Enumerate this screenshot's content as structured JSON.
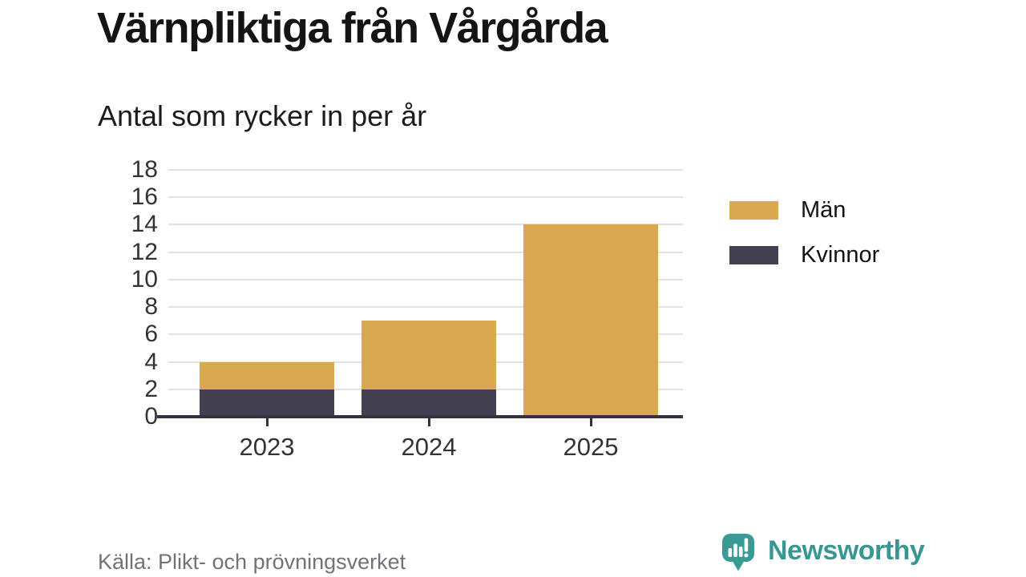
{
  "header": {
    "title": "Värnpliktiga från Vårgårda",
    "subtitle": "Antal som rycker in per år"
  },
  "chart_data": {
    "type": "bar",
    "stacked": true,
    "title": "Värnpliktiga från Vårgårda",
    "subtitle": "Antal som rycker in per år",
    "categories": [
      "2023",
      "2024",
      "2025"
    ],
    "series": [
      {
        "name": "Män",
        "color": "#d9a850",
        "values": [
          2,
          5,
          14
        ]
      },
      {
        "name": "Kvinnor",
        "color": "#434051",
        "values": [
          2,
          2,
          0
        ]
      }
    ],
    "stack_order_bottom_to_top": [
      "Kvinnor",
      "Män"
    ],
    "totals": [
      4,
      7,
      14
    ],
    "xlabel": "",
    "ylabel": "",
    "ylim": [
      0,
      18
    ],
    "yticks": [
      0,
      2,
      4,
      6,
      8,
      10,
      12,
      14,
      16,
      18
    ],
    "grid": true,
    "legend_position": "right",
    "legend": [
      "Män",
      "Kvinnor"
    ]
  },
  "colors": {
    "man_gold": "#d9a850",
    "kvinnor_dark": "#434051",
    "axis": "#35323f",
    "gridline": "#e2e2e2",
    "tick_label": "#333333",
    "title_text": "#141414",
    "source_text": "#72727b",
    "brand_teal": "#399792"
  },
  "footer": {
    "source": "Källa: Plikt- och prövningsverket",
    "brand": "Newsworthy"
  }
}
